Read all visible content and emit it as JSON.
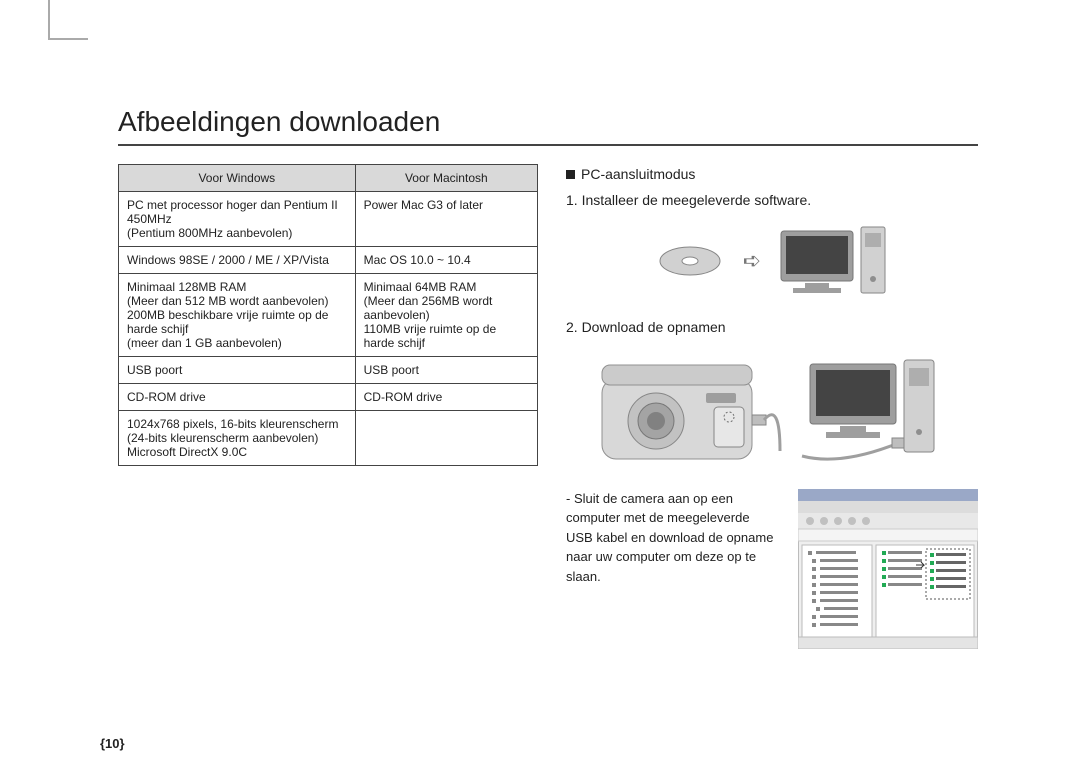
{
  "title": "Afbeeldingen downloaden",
  "page_number": "{10}",
  "table": {
    "headers": [
      "Voor Windows",
      "Voor Macintosh"
    ],
    "rows": [
      [
        "PC met processor hoger dan Pentium II 450MHz\n(Pentium 800MHz aanbevolen)",
        "Power Mac G3 of later"
      ],
      [
        "Windows 98SE / 2000 / ME / XP/Vista",
        "Mac OS 10.0 ~ 10.4"
      ],
      [
        "Minimaal 128MB RAM\n(Meer dan 512 MB wordt aanbevolen)\n200MB beschikbare vrije ruimte op de harde schijf\n(meer dan 1 GB aanbevolen)",
        "Minimaal 64MB RAM\n(Meer dan 256MB wordt aanbevolen)\n110MB vrije ruimte op de harde schijf"
      ],
      [
        "USB poort",
        "USB poort"
      ],
      [
        "CD-ROM drive",
        "CD-ROM drive"
      ],
      [
        "1024x768 pixels, 16-bits kleurenscherm\n(24-bits kleurenscherm aanbevolen)\nMicrosoft DirectX 9.0C",
        ""
      ]
    ]
  },
  "right": {
    "section_label": "PC-aansluitmodus",
    "step1": "1. Installeer de meegeleverde software.",
    "step2": "2. Download de opnamen",
    "note": "- Sluit de camera aan op een computer met de meegeleverde USB kabel en download de opname naar uw computer om deze op te slaan."
  },
  "colors": {
    "text": "#222222",
    "rule": "#444444",
    "header_bg": "#d9d9d9",
    "illus_stroke": "#808080",
    "illus_fill": "#cfcfcf"
  }
}
